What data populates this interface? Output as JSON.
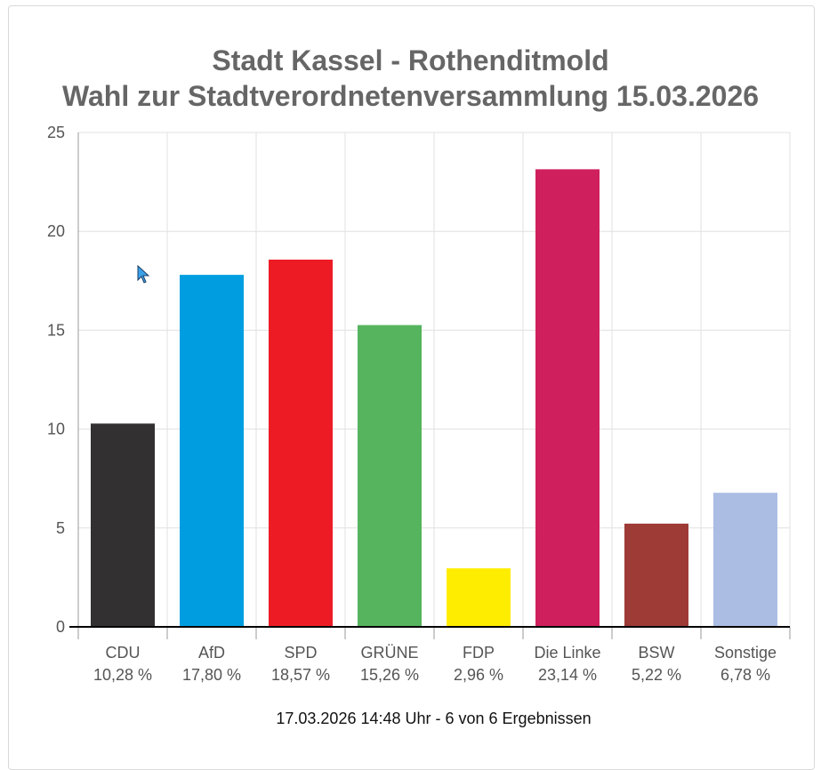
{
  "chart_data": {
    "type": "bar",
    "title_line1": "Stadt Kassel - Rothenditmold",
    "title_line2": "Wahl zur Stadtverordnetenversammlung 15.03.2026",
    "categories": [
      "CDU",
      "AfD",
      "SPD",
      "GRÜNE",
      "FDP",
      "Die Linke",
      "BSW",
      "Sonstige"
    ],
    "values": [
      10.28,
      17.8,
      18.57,
      15.26,
      2.96,
      23.14,
      5.22,
      6.78
    ],
    "value_labels": [
      "10,28 %",
      "17,80 %",
      "18,57 %",
      "15,26 %",
      "2,96 %",
      "23,14 %",
      "5,22 %",
      "6,78 %"
    ],
    "colors": [
      "#323031",
      "#009ee0",
      "#ed1c24",
      "#56b45e",
      "#ffed00",
      "#d01f5d",
      "#9e3b37",
      "#abbde3"
    ],
    "ylim": [
      0,
      25
    ],
    "yticks": [
      "0",
      "5",
      "10",
      "15",
      "20",
      "25"
    ],
    "grid": true,
    "xlabel": "",
    "ylabel": ""
  },
  "footer": {
    "status": "17.03.2026 14:48 Uhr - 6 von 6 Ergebnissen"
  }
}
